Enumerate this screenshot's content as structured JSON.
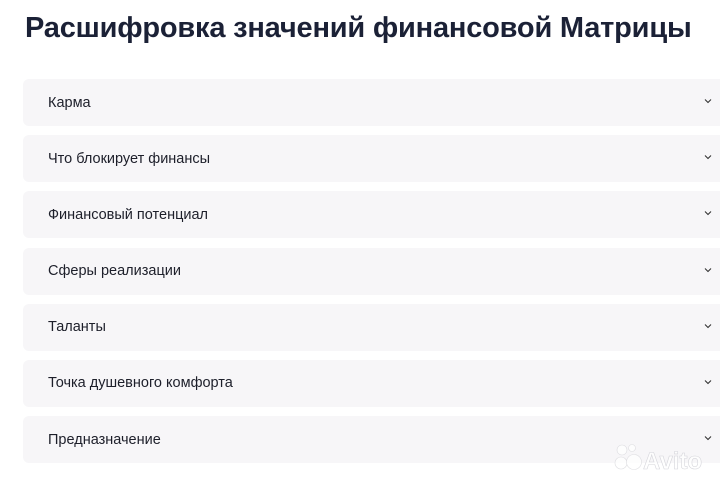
{
  "page": {
    "title": "Расшифровка значений финансовой Матрицы"
  },
  "accordion": {
    "items": [
      {
        "label": "Карма"
      },
      {
        "label": "Что блокирует финансы"
      },
      {
        "label": "Финансовый потенциал"
      },
      {
        "label": "Сферы реализации"
      },
      {
        "label": "Таланты"
      },
      {
        "label": "Точка душевного комфорта"
      },
      {
        "label": "Предназначение"
      }
    ],
    "icon": "chevron-down-icon"
  },
  "watermark": {
    "text": "Avito"
  },
  "colors": {
    "title": "#1b2136",
    "card": "#f7f6f8"
  }
}
